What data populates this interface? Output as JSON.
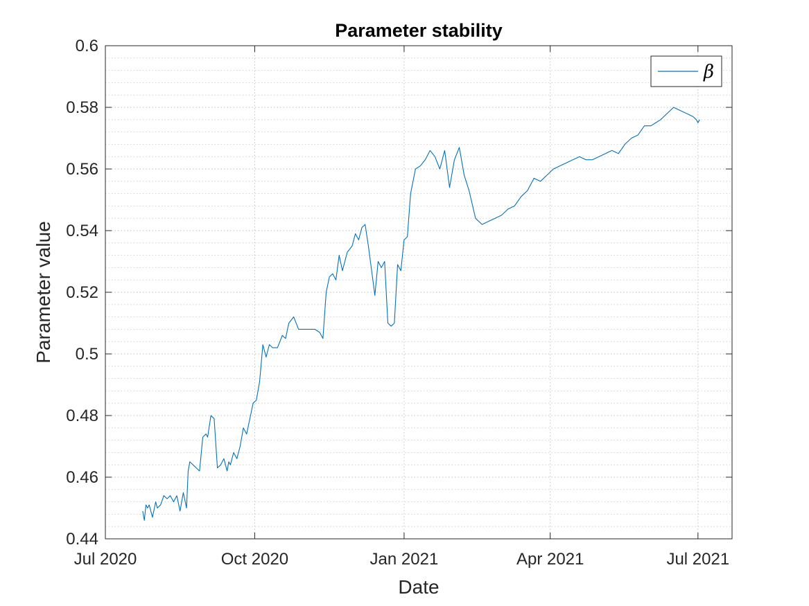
{
  "chart_data": {
    "type": "line",
    "title": "Parameter stability",
    "xlabel": "Date",
    "ylabel": "Parameter value",
    "xlim": [
      "2020-07-01",
      "2021-07-22"
    ],
    "ylim": [
      0.44,
      0.6
    ],
    "x_ticks": [
      {
        "date": "2020-07-01",
        "label": "Jul 2020"
      },
      {
        "date": "2020-10-01",
        "label": "Oct 2020"
      },
      {
        "date": "2021-01-01",
        "label": "Jan 2021"
      },
      {
        "date": "2021-04-01",
        "label": "Apr 2021"
      },
      {
        "date": "2021-07-01",
        "label": "Jul 2021"
      }
    ],
    "y_ticks": [
      0.44,
      0.46,
      0.48,
      0.5,
      0.52,
      0.54,
      0.56,
      0.58,
      0.6
    ],
    "y_tick_labels": [
      "0.44",
      "0.46",
      "0.48",
      "0.5",
      "0.52",
      "0.54",
      "0.56",
      "0.58",
      "0.6"
    ],
    "grid": true,
    "minor_grid": true,
    "legend_position": "top-right",
    "series": [
      {
        "name": "β",
        "color": "#0072BD",
        "x": [
          "2020-07-24",
          "2020-07-25",
          "2020-07-26",
          "2020-07-27",
          "2020-07-28",
          "2020-07-30",
          "2020-08-01",
          "2020-08-02",
          "2020-08-04",
          "2020-08-06",
          "2020-08-08",
          "2020-08-10",
          "2020-08-12",
          "2020-08-14",
          "2020-08-16",
          "2020-08-18",
          "2020-08-20",
          "2020-08-21",
          "2020-08-22",
          "2020-08-24",
          "2020-08-26",
          "2020-08-28",
          "2020-08-30",
          "2020-09-01",
          "2020-09-02",
          "2020-09-04",
          "2020-09-06",
          "2020-09-08",
          "2020-09-10",
          "2020-09-12",
          "2020-09-14",
          "2020-09-15",
          "2020-09-16",
          "2020-09-18",
          "2020-09-20",
          "2020-09-22",
          "2020-09-24",
          "2020-09-26",
          "2020-09-28",
          "2020-09-30",
          "2020-10-02",
          "2020-10-04",
          "2020-10-06",
          "2020-10-08",
          "2020-10-10",
          "2020-10-12",
          "2020-10-15",
          "2020-10-18",
          "2020-10-20",
          "2020-10-22",
          "2020-10-25",
          "2020-10-28",
          "2020-11-01",
          "2020-11-04",
          "2020-11-07",
          "2020-11-10",
          "2020-11-12",
          "2020-11-14",
          "2020-11-16",
          "2020-11-18",
          "2020-11-20",
          "2020-11-22",
          "2020-11-24",
          "2020-11-27",
          "2020-11-30",
          "2020-12-02",
          "2020-12-04",
          "2020-12-06",
          "2020-12-08",
          "2020-12-10",
          "2020-12-12",
          "2020-12-14",
          "2020-12-16",
          "2020-12-18",
          "2020-12-20",
          "2020-12-22",
          "2020-12-24",
          "2020-12-26",
          "2020-12-28",
          "2020-12-30",
          "2021-01-01",
          "2021-01-03",
          "2021-01-05",
          "2021-01-08",
          "2021-01-11",
          "2021-01-14",
          "2021-01-17",
          "2021-01-20",
          "2021-01-23",
          "2021-01-26",
          "2021-01-29",
          "2021-02-01",
          "2021-02-04",
          "2021-02-07",
          "2021-02-10",
          "2021-02-14",
          "2021-02-18",
          "2021-02-22",
          "2021-02-26",
          "2021-03-02",
          "2021-03-06",
          "2021-03-10",
          "2021-03-14",
          "2021-03-18",
          "2021-03-22",
          "2021-03-26",
          "2021-03-30",
          "2021-04-03",
          "2021-04-07",
          "2021-04-11",
          "2021-04-15",
          "2021-04-19",
          "2021-04-23",
          "2021-04-27",
          "2021-05-01",
          "2021-05-05",
          "2021-05-09",
          "2021-05-13",
          "2021-05-17",
          "2021-05-21",
          "2021-05-25",
          "2021-05-29",
          "2021-06-02",
          "2021-06-05",
          "2021-06-08",
          "2021-06-12",
          "2021-06-16",
          "2021-06-20",
          "2021-06-24",
          "2021-06-28",
          "2021-06-30",
          "2021-07-01",
          "2021-07-02"
        ],
        "y": [
          0.449,
          0.446,
          0.451,
          0.45,
          0.451,
          0.447,
          0.452,
          0.45,
          0.451,
          0.454,
          0.453,
          0.454,
          0.452,
          0.454,
          0.449,
          0.455,
          0.45,
          0.462,
          0.465,
          0.464,
          0.463,
          0.462,
          0.473,
          0.474,
          0.473,
          0.48,
          0.479,
          0.463,
          0.464,
          0.466,
          0.462,
          0.465,
          0.464,
          0.468,
          0.466,
          0.47,
          0.476,
          0.474,
          0.479,
          0.484,
          0.485,
          0.491,
          0.503,
          0.499,
          0.503,
          0.502,
          0.502,
          0.506,
          0.505,
          0.51,
          0.512,
          0.508,
          0.508,
          0.508,
          0.508,
          0.507,
          0.505,
          0.52,
          0.525,
          0.526,
          0.524,
          0.532,
          0.527,
          0.533,
          0.535,
          0.539,
          0.537,
          0.541,
          0.542,
          0.535,
          0.527,
          0.519,
          0.53,
          0.528,
          0.53,
          0.51,
          0.509,
          0.51,
          0.529,
          0.527,
          0.537,
          0.538,
          0.552,
          0.56,
          0.561,
          0.563,
          0.566,
          0.564,
          0.56,
          0.566,
          0.554,
          0.563,
          0.567,
          0.558,
          0.553,
          0.544,
          0.542,
          0.543,
          0.544,
          0.545,
          0.547,
          0.548,
          0.551,
          0.553,
          0.557,
          0.556,
          0.558,
          0.56,
          0.561,
          0.562,
          0.563,
          0.564,
          0.563,
          0.563,
          0.564,
          0.565,
          0.566,
          0.565,
          0.568,
          0.57,
          0.571,
          0.574,
          0.574,
          0.575,
          0.576,
          0.578,
          0.58,
          0.579,
          0.578,
          0.577,
          0.576,
          0.575,
          0.576
        ]
      }
    ]
  }
}
